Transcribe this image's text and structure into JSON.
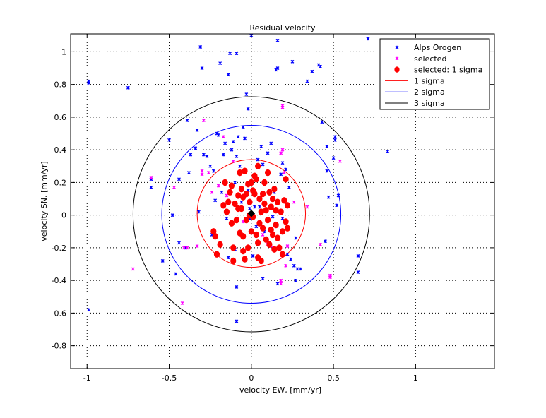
{
  "chart_data": {
    "type": "scatter",
    "title": "Residual velocity",
    "xlabel": "velocity EW, [mm/yr]",
    "ylabel": "velocity SN, [mm/yr]",
    "xlim": [
      -1.1,
      1.48
    ],
    "ylim": [
      -0.94,
      1.11
    ],
    "xticks": [
      -1,
      -0.5,
      0,
      0.5,
      1
    ],
    "yticks": [
      -0.8,
      -0.6,
      -0.4,
      -0.2,
      0,
      0.2,
      0.4,
      0.6,
      0.8,
      1
    ],
    "xtick_labels": [
      "-1",
      "-0.5",
      "0",
      "0.5",
      "1"
    ],
    "ytick_labels": [
      "-0.8",
      "-0.6",
      "-0.4",
      "-0.2",
      "0",
      "0.2",
      "0.4",
      "0.6",
      "0.8",
      "1"
    ],
    "grid": true,
    "legend_position": "top-right",
    "center_marker": {
      "x": 0.0,
      "y": 0.01,
      "color": "#000000"
    },
    "series": [
      {
        "name": "Alps Orogen",
        "kind": "points",
        "color": "#0000ff",
        "points": [
          [
            -0.99,
            0.82
          ],
          [
            -0.99,
            0.81
          ],
          [
            -0.99,
            -0.58
          ],
          [
            -0.75,
            0.78
          ],
          [
            -0.61,
            0.22
          ],
          [
            -0.61,
            0.17
          ],
          [
            -0.54,
            -0.28
          ],
          [
            -0.5,
            0.46
          ],
          [
            -0.48,
            0.0
          ],
          [
            -0.46,
            -0.36
          ],
          [
            -0.44,
            -0.17
          ],
          [
            -0.44,
            0.22
          ],
          [
            -0.4,
            -0.2
          ],
          [
            -0.39,
            0.58
          ],
          [
            -0.38,
            0.26
          ],
          [
            -0.37,
            0.37
          ],
          [
            -0.34,
            0.41
          ],
          [
            -0.33,
            0.52
          ],
          [
            -0.32,
            0.02
          ],
          [
            -0.31,
            1.03
          ],
          [
            -0.3,
            0.9
          ],
          [
            -0.29,
            0.37
          ],
          [
            -0.27,
            0.36
          ],
          [
            -0.25,
            0.3
          ],
          [
            -0.24,
            -0.12
          ],
          [
            -0.23,
            0.27
          ],
          [
            -0.22,
            0.09
          ],
          [
            -0.21,
            0.5
          ],
          [
            -0.2,
            0.49
          ],
          [
            -0.19,
            0.93
          ],
          [
            -0.18,
            0.14
          ],
          [
            -0.17,
            0.37
          ],
          [
            -0.16,
            0.44
          ],
          [
            -0.15,
            -0.02
          ],
          [
            -0.14,
            0.86
          ],
          [
            -0.13,
            0.99
          ],
          [
            -0.12,
            0.4
          ],
          [
            -0.11,
            0.45
          ],
          [
            -0.1,
            0.2
          ],
          [
            -0.09,
            0.36
          ],
          [
            -0.09,
            0.99
          ],
          [
            -0.08,
            0.48
          ],
          [
            -0.07,
            0.3
          ],
          [
            -0.06,
            0.08
          ],
          [
            -0.05,
            0.54
          ],
          [
            -0.05,
            0.27
          ],
          [
            -0.04,
            0.26
          ],
          [
            -0.04,
            0.47
          ],
          [
            -0.03,
            0.74
          ],
          [
            -0.02,
            0.15
          ],
          [
            -0.02,
            0.65
          ],
          [
            -0.01,
            0.04
          ],
          [
            -0.01,
            -0.02
          ],
          [
            0.0,
            1.1
          ],
          [
            0.01,
            -0.25
          ],
          [
            0.02,
            0.05
          ],
          [
            0.03,
            -0.07
          ],
          [
            0.04,
            0.34
          ],
          [
            0.05,
            0.05
          ],
          [
            0.06,
            0.42
          ],
          [
            0.07,
            0.31
          ],
          [
            0.08,
            -0.1
          ],
          [
            0.1,
            0.38
          ],
          [
            0.12,
            0.44
          ],
          [
            0.13,
            -0.01
          ],
          [
            0.15,
            0.89
          ],
          [
            0.16,
            1.07
          ],
          [
            0.16,
            0.9
          ],
          [
            0.18,
            0.25
          ],
          [
            0.19,
            0.32
          ],
          [
            0.21,
            0.28
          ],
          [
            0.22,
            -0.24
          ],
          [
            0.23,
            0.17
          ],
          [
            0.24,
            -0.27
          ],
          [
            0.25,
            0.94
          ],
          [
            0.26,
            -0.31
          ],
          [
            0.27,
            -0.14
          ],
          [
            0.28,
            -0.33
          ],
          [
            0.3,
            -0.33
          ],
          [
            0.34,
            0.82
          ],
          [
            0.37,
            0.88
          ],
          [
            0.41,
            0.92
          ],
          [
            0.42,
            0.91
          ],
          [
            0.43,
            0.57
          ],
          [
            0.45,
            -0.16
          ],
          [
            0.46,
            0.42
          ],
          [
            0.46,
            0.27
          ],
          [
            0.47,
            0.11
          ],
          [
            0.5,
            0.35
          ],
          [
            0.51,
            0.46
          ],
          [
            0.51,
            0.48
          ],
          [
            0.52,
            0.06
          ],
          [
            0.53,
            0.12
          ],
          [
            0.65,
            -0.25
          ],
          [
            0.65,
            -0.35
          ],
          [
            0.71,
            1.08
          ],
          [
            0.71,
            1.08
          ],
          [
            0.83,
            0.39
          ],
          [
            -0.09,
            -0.65
          ],
          [
            -0.09,
            -0.44
          ],
          [
            0.27,
            -0.4
          ],
          [
            0.16,
            -0.42
          ],
          [
            -0.14,
            -0.26
          ],
          [
            0.07,
            -0.39
          ],
          [
            0.19,
            -0.02
          ],
          [
            -0.1,
            -0.21
          ],
          [
            0.14,
            0.14
          ]
        ]
      },
      {
        "name": "selected",
        "kind": "points",
        "color": "#ff00ff",
        "points": [
          [
            -0.72,
            -0.33
          ],
          [
            -0.61,
            0.23
          ],
          [
            -0.47,
            0.17
          ],
          [
            -0.42,
            -0.54
          ],
          [
            -0.41,
            -0.2
          ],
          [
            -0.39,
            -0.2
          ],
          [
            -0.33,
            -0.19
          ],
          [
            -0.3,
            0.25
          ],
          [
            -0.3,
            0.27
          ],
          [
            -0.29,
            0.58
          ],
          [
            -0.26,
            0.26
          ],
          [
            -0.24,
            0.14
          ],
          [
            -0.2,
            0.18
          ],
          [
            -0.17,
            0.48
          ],
          [
            -0.15,
            0.12
          ],
          [
            -0.14,
            0.08
          ],
          [
            -0.11,
            0.33
          ],
          [
            -0.05,
            -0.04
          ],
          [
            0.07,
            -0.12
          ],
          [
            0.1,
            -0.18
          ],
          [
            0.13,
            -0.2
          ],
          [
            0.18,
            0.38
          ],
          [
            0.19,
            0.4
          ],
          [
            0.19,
            0.66
          ],
          [
            0.19,
            0.67
          ],
          [
            0.21,
            -0.31
          ],
          [
            0.22,
            -0.19
          ],
          [
            0.26,
            0.08
          ],
          [
            0.34,
            0.05
          ],
          [
            0.42,
            -0.18
          ],
          [
            0.48,
            -0.37
          ],
          [
            0.48,
            -0.38
          ],
          [
            0.54,
            0.33
          ],
          [
            0.18,
            -0.4
          ],
          [
            0.18,
            -0.42
          ],
          [
            0.2,
            0.26
          ]
        ]
      },
      {
        "name": "selected: 1 sigma",
        "kind": "points",
        "color": "#ff0000",
        "points": [
          [
            -0.23,
            -0.1
          ],
          [
            -0.22,
            -0.13
          ],
          [
            -0.21,
            -0.24
          ],
          [
            -0.19,
            -0.18
          ],
          [
            -0.17,
            0.06
          ],
          [
            -0.16,
            0.2
          ],
          [
            -0.15,
            0.02
          ],
          [
            -0.14,
            0.08
          ],
          [
            -0.13,
            0.14
          ],
          [
            -0.12,
            0.18
          ],
          [
            -0.11,
            -0.2
          ],
          [
            -0.11,
            -0.28
          ],
          [
            -0.1,
            0.07
          ],
          [
            -0.09,
            -0.03
          ],
          [
            -0.08,
            0.12
          ],
          [
            -0.08,
            0.04
          ],
          [
            -0.07,
            0.26
          ],
          [
            -0.07,
            -0.11
          ],
          [
            -0.06,
            0.16
          ],
          [
            -0.06,
            0.04
          ],
          [
            -0.05,
            0.11
          ],
          [
            -0.05,
            -0.22
          ],
          [
            -0.04,
            0.27
          ],
          [
            -0.04,
            -0.27
          ],
          [
            -0.03,
            0.13
          ],
          [
            -0.03,
            -0.03
          ],
          [
            -0.02,
            -0.2
          ],
          [
            -0.02,
            0.19
          ],
          [
            -0.01,
            0.08
          ],
          [
            -0.01,
            0.0
          ],
          [
            0.0,
            0.2
          ],
          [
            0.0,
            -0.1
          ],
          [
            0.01,
            0.15
          ],
          [
            0.01,
            -0.01
          ],
          [
            0.02,
            0.24
          ],
          [
            0.02,
            0.13
          ],
          [
            0.03,
            -0.12
          ],
          [
            0.03,
            0.22
          ],
          [
            0.04,
            0.3
          ],
          [
            0.04,
            -0.26
          ],
          [
            0.05,
            0.1
          ],
          [
            0.05,
            -0.05
          ],
          [
            0.06,
            0.02
          ],
          [
            0.06,
            -0.28
          ],
          [
            0.07,
            0.13
          ],
          [
            0.07,
            -0.08
          ],
          [
            0.08,
            0.2
          ],
          [
            0.08,
            0.07
          ],
          [
            0.09,
            -0.15
          ],
          [
            0.09,
            0.03
          ],
          [
            0.1,
            0.26
          ],
          [
            0.1,
            -0.03
          ],
          [
            0.11,
            0.14
          ],
          [
            0.11,
            -0.18
          ],
          [
            0.12,
            0.05
          ],
          [
            0.12,
            -0.09
          ],
          [
            0.13,
            0.1
          ],
          [
            0.13,
            -0.12
          ],
          [
            0.14,
            -0.21
          ],
          [
            0.14,
            0.16
          ],
          [
            0.15,
            0.03
          ],
          [
            0.15,
            -0.06
          ],
          [
            0.16,
            0.08
          ],
          [
            0.16,
            -0.14
          ],
          [
            0.17,
            -0.2
          ],
          [
            0.18,
            0.02
          ],
          [
            0.19,
            -0.24
          ],
          [
            0.2,
            0.09
          ],
          [
            0.21,
            -0.04
          ],
          [
            0.21,
            0.22
          ],
          [
            0.22,
            -0.08
          ],
          [
            0.22,
            0.06
          ],
          [
            -0.05,
            -0.13
          ],
          [
            0.04,
            -0.17
          ],
          [
            -0.12,
            -0.05
          ],
          [
            0.19,
            -0.1
          ]
        ]
      },
      {
        "name": "1 sigma",
        "kind": "circle",
        "color": "#ff0000",
        "center": [
          0.0,
          0.01
        ],
        "radius": 0.33
      },
      {
        "name": "2 sigma",
        "kind": "circle",
        "color": "#0000ff",
        "center": [
          0.0,
          0.005
        ],
        "radius": 0.545
      },
      {
        "name": "3 sigma",
        "kind": "circle",
        "color": "#000000",
        "center": [
          0.0,
          0.005
        ],
        "radius": 0.72
      }
    ]
  }
}
